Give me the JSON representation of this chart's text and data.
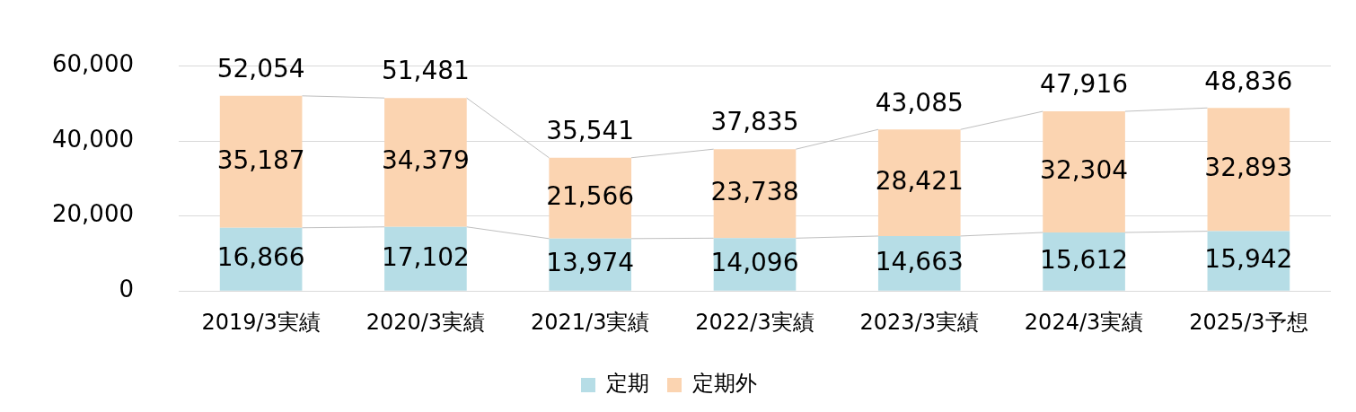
{
  "chart_data": {
    "type": "bar",
    "stacked": true,
    "categories": [
      "2019/3実績",
      "2020/3実績",
      "2021/3実績",
      "2022/3実績",
      "2023/3実績",
      "2024/3実績",
      "2025/3予想"
    ],
    "series": [
      {
        "name": "定期",
        "color": "#b6dde6",
        "values": [
          16866,
          17102,
          13974,
          14096,
          14663,
          15612,
          15942
        ],
        "value_labels": [
          "16,866",
          "17,102",
          "13,974",
          "14,096",
          "14,663",
          "15,612",
          "15,942"
        ]
      },
      {
        "name": "定期外",
        "color": "#fbd4b1",
        "values": [
          35187,
          34379,
          21566,
          23738,
          28421,
          32304,
          32893
        ],
        "value_labels": [
          "35,187",
          "34,379",
          "21,566",
          "23,738",
          "28,421",
          "32,304",
          "32,893"
        ]
      }
    ],
    "totals": [
      "52,054",
      "51,481",
      "35,541",
      "37,835",
      "43,085",
      "47,916",
      "48,836"
    ],
    "ylim": [
      0,
      60000
    ],
    "yticks": [
      0,
      {
        "value": 20000,
        "label": "20,000"
      },
      {
        "value": 40000,
        "label": "40,000"
      },
      {
        "value": 60000,
        "label": "60,000"
      }
    ],
    "grid": "y",
    "legend": "bottom"
  }
}
